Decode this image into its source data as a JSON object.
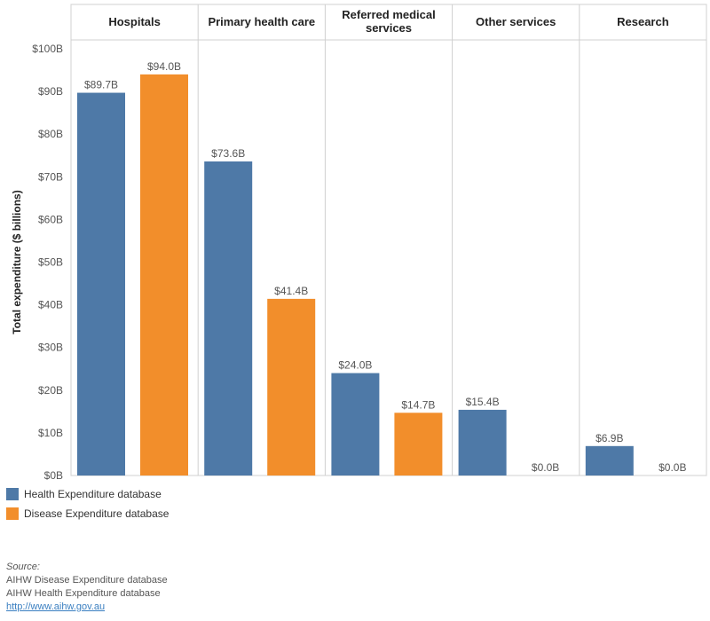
{
  "chart_data": {
    "type": "bar",
    "ylabel": "Total expenditure ($ billions)",
    "ylim": [
      0,
      100
    ],
    "yticks": [
      0,
      10,
      20,
      30,
      40,
      50,
      60,
      70,
      80,
      90,
      100
    ],
    "ytick_labels": [
      "$0B",
      "$10B",
      "$20B",
      "$30B",
      "$40B",
      "$50B",
      "$60B",
      "$70B",
      "$80B",
      "$90B",
      "$100B"
    ],
    "categories": [
      "Hospitals",
      "Primary health care",
      "Referred medical services",
      "Other services",
      "Research"
    ],
    "series": [
      {
        "name": "Health Expenditure database",
        "color": "#4e79a7",
        "values": [
          89.7,
          73.6,
          24.0,
          15.4,
          6.9
        ],
        "labels": [
          "$89.7B",
          "$73.6B",
          "$24.0B",
          "$15.4B",
          "$6.9B"
        ]
      },
      {
        "name": "Disease Expenditure database",
        "color": "#f28e2b",
        "values": [
          94.0,
          41.4,
          14.7,
          0.0,
          0.0
        ],
        "labels": [
          "$94.0B",
          "$41.4B",
          "$14.7B",
          "$0.0B",
          "$0.0B"
        ]
      }
    ],
    "legend_position": "bottom-left",
    "grid": false
  },
  "source": {
    "title": "Source:",
    "lines": [
      "AIHW Disease Expenditure database",
      "AIHW Health Expenditure database"
    ],
    "link": "http://www.aihw.gov.au"
  }
}
